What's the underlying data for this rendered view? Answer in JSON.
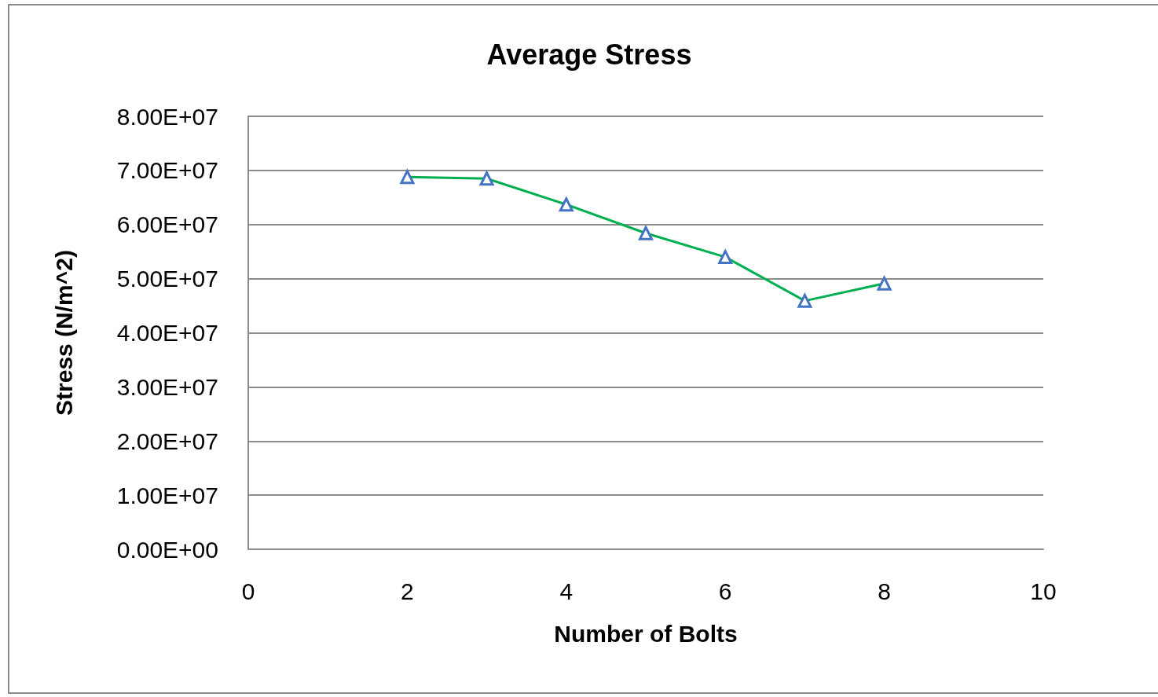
{
  "chart_data": {
    "type": "line",
    "title": "Average Stress",
    "xlabel": "Number of Bolts",
    "ylabel": "Stress (N/m^2)",
    "x": [
      2,
      3,
      4,
      5,
      6,
      7,
      8
    ],
    "series": [
      {
        "color": "#00b050",
        "colors": [
          "#4472c4",
          "#4472c4",
          "#4472c4",
          "#4472c4",
          "#4472c4",
          "#4472c4",
          "#4472c4"
        ],
        "values": [
          68800000,
          68500000,
          63700000,
          58400000,
          54000000,
          45900000,
          49100000
        ]
      }
    ],
    "xlim": [
      0,
      10
    ],
    "xticks": [
      0,
      2,
      4,
      6,
      8,
      10
    ],
    "ylim": [
      0,
      80000000
    ],
    "yticks": [
      {
        "value": 0,
        "label": "0.00E+00"
      },
      {
        "value": 10000000,
        "label": "1.00E+07"
      },
      {
        "value": 20000000,
        "label": "2.00E+07"
      },
      {
        "value": 30000000,
        "label": "3.00E+07"
      },
      {
        "value": 40000000,
        "label": "4.00E+07"
      },
      {
        "value": 50000000,
        "label": "5.00E+07"
      },
      {
        "value": 60000000,
        "label": "6.00E+07"
      },
      {
        "value": 70000000,
        "label": "7.00E+07"
      },
      {
        "value": 80000000,
        "label": "8.00E+07"
      }
    ],
    "grid": "y",
    "marker": "triangle",
    "line_style": "solid"
  }
}
